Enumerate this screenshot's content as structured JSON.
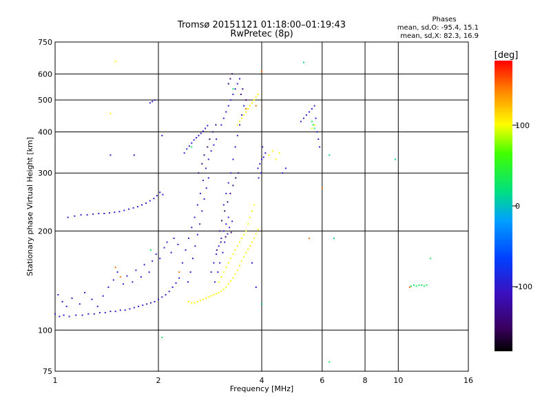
{
  "chart_data": {
    "type": "scatter",
    "title": "Tromsø 20151121 01:18:00–01:19:43",
    "subtitle": "RwPretec (8p)",
    "stats": {
      "title": "Phases",
      "line_o": "mean, sd,O: -95.4, 15.1",
      "line_x": "mean, sd,X:  82.3, 16.9"
    },
    "xlabel": "Frequency [MHz]",
    "ylabel": "Stationary phase Virtual Height [km]",
    "x_scale": "log",
    "y_scale": "log",
    "xlim": [
      1,
      16
    ],
    "ylim": [
      75,
      750
    ],
    "x_ticks": [
      1,
      2,
      4,
      6,
      8,
      10,
      16
    ],
    "x_tick_labels": [
      "1",
      "2",
      "4",
      "6",
      "8",
      "10",
      "16"
    ],
    "y_ticks": [
      75,
      100,
      200,
      300,
      400,
      500,
      600,
      750
    ],
    "y_tick_labels": [
      "75",
      "100",
      "200",
      "300",
      "400",
      "500",
      "600",
      "750"
    ],
    "grid": true,
    "colorbar": {
      "label": "[deg]",
      "range": [
        -180,
        180
      ],
      "ticks": [
        100,
        0,
        -100
      ],
      "tick_labels": [
        "100",
        "0",
        "-100"
      ]
    },
    "series": [
      {
        "color_value": -100,
        "points": [
          [
            1.0,
            112
          ],
          [
            1.03,
            110
          ],
          [
            1.06,
            111
          ],
          [
            1.1,
            110
          ],
          [
            1.15,
            111
          ],
          [
            1.2,
            111
          ],
          [
            1.25,
            112
          ],
          [
            1.3,
            112
          ],
          [
            1.35,
            113
          ],
          [
            1.4,
            113
          ],
          [
            1.45,
            114
          ],
          [
            1.5,
            114
          ],
          [
            1.55,
            115
          ],
          [
            1.6,
            115
          ],
          [
            1.65,
            116
          ],
          [
            1.7,
            117
          ],
          [
            1.75,
            118
          ],
          [
            1.8,
            119
          ],
          [
            1.85,
            120
          ],
          [
            1.9,
            121
          ],
          [
            1.95,
            122
          ],
          [
            2.0,
            124
          ],
          [
            2.05,
            126
          ],
          [
            2.1,
            128
          ],
          [
            2.15,
            131
          ],
          [
            2.2,
            135
          ],
          [
            2.25,
            139
          ],
          [
            2.3,
            144
          ],
          [
            1.02,
            128
          ],
          [
            1.05,
            122
          ],
          [
            1.08,
            118
          ],
          [
            1.12,
            125
          ],
          [
            1.18,
            120
          ],
          [
            1.22,
            130
          ],
          [
            1.28,
            124
          ],
          [
            1.33,
            118
          ],
          [
            1.38,
            127
          ],
          [
            1.43,
            135
          ],
          [
            1.48,
            142
          ],
          [
            1.52,
            150
          ],
          [
            1.58,
            138
          ],
          [
            1.62,
            146
          ],
          [
            1.68,
            140
          ],
          [
            1.72,
            152
          ],
          [
            1.78,
            145
          ],
          [
            1.82,
            158
          ],
          [
            1.88,
            150
          ],
          [
            1.92,
            162
          ],
          [
            1.97,
            170
          ],
          [
            2.02,
            165
          ],
          [
            2.08,
            178
          ],
          [
            2.12,
            185
          ],
          [
            2.18,
            172
          ],
          [
            2.22,
            190
          ],
          [
            2.28,
            182
          ],
          [
            1.09,
            220
          ],
          [
            1.14,
            222
          ],
          [
            1.19,
            224
          ],
          [
            1.24,
            224
          ],
          [
            1.29,
            225
          ],
          [
            1.34,
            226
          ],
          [
            1.39,
            226
          ],
          [
            1.44,
            227
          ],
          [
            1.49,
            228
          ],
          [
            1.54,
            229
          ],
          [
            1.59,
            231
          ],
          [
            1.64,
            233
          ],
          [
            1.69,
            235
          ],
          [
            1.74,
            237
          ],
          [
            1.79,
            240
          ],
          [
            1.84,
            243
          ],
          [
            1.89,
            247
          ],
          [
            1.94,
            251
          ],
          [
            1.98,
            256
          ],
          [
            2.02,
            262
          ],
          [
            2.06,
            258
          ],
          [
            1.89,
            490
          ],
          [
            1.92,
            495
          ],
          [
            1.95,
            500
          ],
          [
            2.35,
            160
          ],
          [
            2.4,
            175
          ],
          [
            2.45,
            190
          ],
          [
            2.5,
            205
          ],
          [
            2.55,
            220
          ],
          [
            2.6,
            240
          ],
          [
            2.65,
            260
          ],
          [
            2.7,
            285
          ],
          [
            2.75,
            310
          ],
          [
            2.8,
            330
          ],
          [
            2.85,
            350
          ],
          [
            2.9,
            365
          ],
          [
            2.95,
            380
          ],
          [
            2.38,
            345
          ],
          [
            2.42,
            355
          ],
          [
            2.46,
            362
          ],
          [
            2.5,
            370
          ],
          [
            2.54,
            378
          ],
          [
            2.58,
            384
          ],
          [
            2.62,
            390
          ],
          [
            2.66,
            396
          ],
          [
            2.7,
            402
          ],
          [
            2.74,
            410
          ],
          [
            2.78,
            418
          ],
          [
            2.44,
            140
          ],
          [
            2.48,
            150
          ],
          [
            2.52,
            165
          ],
          [
            2.56,
            180
          ],
          [
            2.6,
            195
          ],
          [
            2.64,
            210
          ],
          [
            2.68,
            230
          ],
          [
            2.72,
            250
          ],
          [
            2.76,
            270
          ],
          [
            2.8,
            290
          ],
          [
            2.85,
            150
          ],
          [
            2.9,
            160
          ],
          [
            2.95,
            170
          ],
          [
            3.0,
            180
          ],
          [
            3.05,
            190
          ],
          [
            3.1,
            200
          ],
          [
            3.15,
            210
          ],
          [
            3.2,
            220
          ],
          [
            3.1,
            240
          ],
          [
            3.15,
            260
          ],
          [
            3.2,
            280
          ],
          [
            3.25,
            300
          ],
          [
            3.3,
            330
          ],
          [
            3.35,
            360
          ],
          [
            3.4,
            390
          ],
          [
            3.45,
            420
          ],
          [
            3.5,
            450
          ],
          [
            3.55,
            480
          ],
          [
            3.05,
            420
          ],
          [
            3.1,
            440
          ],
          [
            3.15,
            460
          ],
          [
            3.2,
            480
          ],
          [
            3.25,
            500
          ],
          [
            3.3,
            520
          ],
          [
            3.35,
            540
          ],
          [
            3.4,
            560
          ],
          [
            3.45,
            580
          ],
          [
            2.92,
            140
          ],
          [
            2.98,
            150
          ],
          [
            3.02,
            160
          ],
          [
            3.08,
            172
          ],
          [
            3.12,
            185
          ],
          [
            3.18,
            196
          ],
          [
            3.22,
            205
          ],
          [
            3.28,
            214
          ],
          [
            3.9,
            310
          ],
          [
            3.95,
            320
          ],
          [
            4.0,
            330
          ],
          [
            4.05,
            335
          ],
          [
            4.1,
            345
          ],
          [
            3.92,
            290
          ],
          [
            3.98,
            300
          ],
          [
            4.02,
            360
          ],
          [
            5.2,
            430
          ],
          [
            5.3,
            440
          ],
          [
            5.4,
            450
          ],
          [
            5.5,
            460
          ],
          [
            5.6,
            470
          ],
          [
            5.7,
            480
          ],
          [
            5.75,
            440
          ],
          [
            5.8,
            400
          ],
          [
            5.85,
            380
          ],
          [
            5.9,
            360
          ],
          [
            4.6,
            300
          ],
          [
            4.7,
            310
          ],
          [
            1.45,
            340
          ],
          [
            1.7,
            340
          ],
          [
            2.05,
            390
          ],
          [
            3.75,
            160
          ],
          [
            3.85,
            135
          ]
        ]
      },
      {
        "color_value": -140,
        "points": [
          [
            2.62,
            300
          ],
          [
            2.68,
            320
          ],
          [
            2.72,
            340
          ],
          [
            2.78,
            360
          ],
          [
            2.82,
            380
          ],
          [
            2.88,
            400
          ],
          [
            2.94,
            420
          ],
          [
            3.02,
            200
          ],
          [
            3.06,
            215
          ],
          [
            3.12,
            230
          ],
          [
            3.18,
            245
          ],
          [
            3.24,
            260
          ],
          [
            3.3,
            275
          ],
          [
            3.36,
            290
          ],
          [
            3.42,
            300
          ],
          [
            3.2,
            560
          ],
          [
            3.24,
            580
          ],
          [
            3.28,
            600
          ],
          [
            3.48,
            520
          ],
          [
            3.52,
            540
          ],
          [
            3.6,
            500
          ],
          [
            2.96,
            175
          ],
          [
            3.04,
            185
          ],
          [
            3.14,
            192
          ],
          [
            3.26,
            198
          ]
        ]
      },
      {
        "color_value": 100,
        "points": [
          [
            2.45,
            122
          ],
          [
            2.5,
            121
          ],
          [
            2.55,
            121
          ],
          [
            2.6,
            122
          ],
          [
            2.65,
            123
          ],
          [
            2.7,
            124
          ],
          [
            2.75,
            125
          ],
          [
            2.8,
            126
          ],
          [
            2.85,
            127
          ],
          [
            2.9,
            128
          ],
          [
            2.95,
            129
          ],
          [
            3.0,
            130
          ],
          [
            3.05,
            131
          ],
          [
            3.1,
            133
          ],
          [
            3.15,
            135
          ],
          [
            3.2,
            138
          ],
          [
            3.25,
            141
          ],
          [
            3.3,
            144
          ],
          [
            3.35,
            148
          ],
          [
            3.4,
            152
          ],
          [
            3.45,
            157
          ],
          [
            3.5,
            162
          ],
          [
            3.55,
            167
          ],
          [
            3.6,
            172
          ],
          [
            3.65,
            176
          ],
          [
            3.7,
            180
          ],
          [
            3.75,
            185
          ],
          [
            3.8,
            190
          ],
          [
            3.85,
            196
          ],
          [
            3.9,
            202
          ],
          [
            3.0,
            140
          ],
          [
            3.05,
            145
          ],
          [
            3.1,
            150
          ],
          [
            3.15,
            155
          ],
          [
            3.2,
            160
          ],
          [
            3.25,
            165
          ],
          [
            3.3,
            170
          ],
          [
            3.35,
            175
          ],
          [
            3.4,
            180
          ],
          [
            3.45,
            185
          ],
          [
            3.5,
            190
          ],
          [
            3.55,
            195
          ],
          [
            3.6,
            200
          ],
          [
            3.65,
            210
          ],
          [
            3.7,
            220
          ],
          [
            3.75,
            230
          ],
          [
            3.8,
            240
          ],
          [
            3.4,
            420
          ],
          [
            3.45,
            430
          ],
          [
            3.5,
            440
          ],
          [
            3.55,
            450
          ],
          [
            3.6,
            460
          ],
          [
            3.65,
            470
          ],
          [
            3.7,
            480
          ],
          [
            3.75,
            490
          ],
          [
            3.8,
            500
          ],
          [
            3.85,
            510
          ],
          [
            3.9,
            520
          ],
          [
            4.2,
            340
          ],
          [
            4.3,
            350
          ],
          [
            4.4,
            330
          ],
          [
            4.5,
            345
          ],
          [
            1.45,
            455
          ],
          [
            1.5,
            655
          ],
          [
            5.6,
            410
          ],
          [
            5.7,
            420
          ]
        ]
      },
      {
        "color_value": 30,
        "points": [
          [
            10.9,
            136
          ],
          [
            11.1,
            137
          ],
          [
            11.3,
            136
          ],
          [
            11.5,
            137
          ],
          [
            11.7,
            137
          ],
          [
            11.9,
            136
          ],
          [
            12.1,
            137
          ],
          [
            5.6,
            430
          ],
          [
            5.65,
            420
          ],
          [
            5.7,
            410
          ],
          [
            2.5,
            360
          ],
          [
            3.3,
            540
          ],
          [
            6.3,
            80
          ],
          [
            12.4,
            165
          ],
          [
            1.9,
            175
          ],
          [
            2.05,
            95
          ]
        ]
      },
      {
        "color_value": 150,
        "points": [
          [
            1.5,
            155
          ],
          [
            3.85,
            480
          ],
          [
            4.0,
            610
          ],
          [
            5.5,
            190
          ],
          [
            6.0,
            270
          ],
          [
            10.8,
            135
          ],
          [
            3.6,
            470
          ],
          [
            1.55,
            145
          ],
          [
            2.3,
            150
          ]
        ]
      },
      {
        "color_value": 10,
        "points": [
          [
            6.3,
            340
          ],
          [
            6.5,
            190
          ],
          [
            9.8,
            330
          ],
          [
            5.3,
            650
          ],
          [
            4.0,
            120
          ]
        ]
      }
    ]
  }
}
